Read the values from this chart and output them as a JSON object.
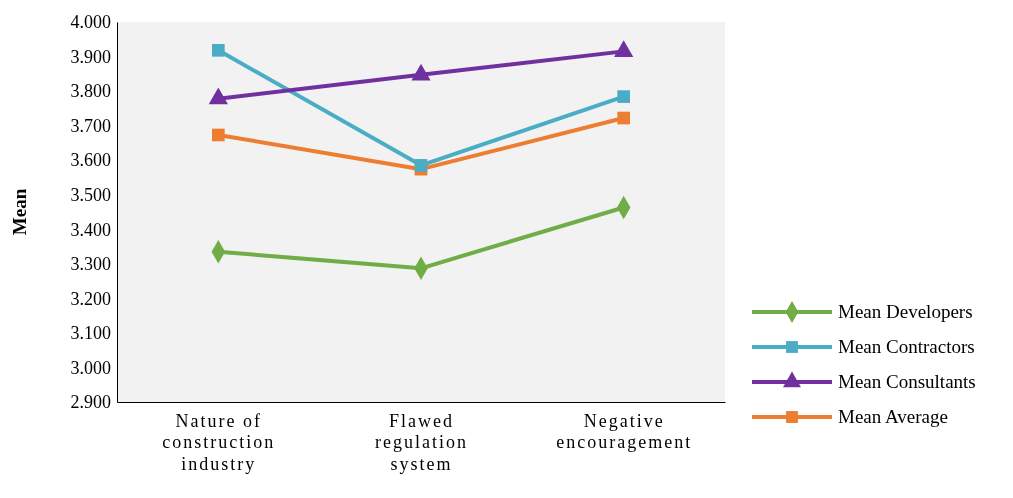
{
  "chart_data": {
    "type": "line",
    "ylabel": "Mean",
    "categories": [
      "Nature of construction industry",
      "Flawed regulation system",
      "Negative encouragement"
    ],
    "series": [
      {
        "name": "Mean Developers",
        "color": "#70ad47",
        "marker": "diamond",
        "values": [
          3.335,
          3.287,
          3.463
        ]
      },
      {
        "name": "Mean Contractors",
        "color": "#4bacc6",
        "marker": "square",
        "values": [
          3.918,
          3.585,
          3.784
        ]
      },
      {
        "name": "Mean Consultants",
        "color": "#7030a0",
        "marker": "triangle",
        "values": [
          3.778,
          3.847,
          3.915
        ]
      },
      {
        "name": "Mean Average",
        "color": "#ed7d31",
        "marker": "square",
        "values": [
          3.673,
          3.574,
          3.722
        ]
      }
    ],
    "ylim": [
      2.9,
      4.0
    ],
    "yticks": [
      {
        "value": 2.9,
        "label": "2.900"
      },
      {
        "value": 3.0,
        "label": "3.000"
      },
      {
        "value": 3.1,
        "label": "3.100"
      },
      {
        "value": 3.2,
        "label": "3.200"
      },
      {
        "value": 3.3,
        "label": "3.300"
      },
      {
        "value": 3.4,
        "label": "3.400"
      },
      {
        "value": 3.5,
        "label": "3.500"
      },
      {
        "value": 3.6,
        "label": "3.600"
      },
      {
        "value": 3.7,
        "label": "3.700"
      },
      {
        "value": 3.8,
        "label": "3.800"
      },
      {
        "value": 3.9,
        "label": "3.900"
      },
      {
        "value": 4.0,
        "label": "4.000"
      }
    ],
    "legend": "right",
    "grid": false,
    "line_style": "solid"
  }
}
